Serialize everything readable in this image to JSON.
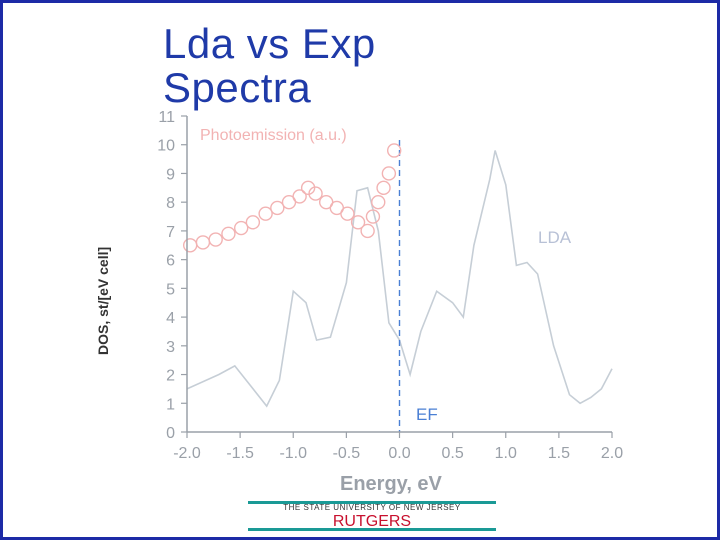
{
  "slide": {
    "title_line1": "Lda vs Exp",
    "title_line2": "Spectra",
    "title_color": "#1f3aa8",
    "frame_color": "#1d2aa6"
  },
  "footer": {
    "tagline": "THE STATE UNIVERSITY OF NEW JERSEY",
    "name": "RUTGERS",
    "name_color": "#c8102e",
    "line_color": "#1a9a96"
  },
  "chart_data": {
    "type": "line",
    "xlabel": "Energy, eV",
    "ylabel": "DOS, st/[eV cell]",
    "xlim": [
      -2.0,
      2.0
    ],
    "ylim": [
      0,
      11
    ],
    "xticks": [
      "-2.0",
      "-1.5",
      "-1.0",
      "-0.5",
      "0.0",
      "0.5",
      "1.0",
      "1.5",
      "2.0"
    ],
    "yticks": [
      "0",
      "1",
      "2",
      "3",
      "4",
      "5",
      "6",
      "7",
      "8",
      "9",
      "10",
      "11"
    ],
    "annotations": {
      "photoemission": "Photoemission (a.u.)",
      "lda": "LDA",
      "ef": "EF"
    },
    "fermi_level": 0.0,
    "series": [
      {
        "name": "LDA",
        "style": "line",
        "color": "#c6ced6",
        "x": [
          -2.0,
          -1.7,
          -1.55,
          -1.4,
          -1.25,
          -1.13,
          -1.0,
          -0.88,
          -0.78,
          -0.65,
          -0.5,
          -0.4,
          -0.3,
          -0.2,
          -0.1,
          0.0,
          0.1,
          0.2,
          0.35,
          0.5,
          0.6,
          0.7,
          0.85,
          0.9,
          1.0,
          1.1,
          1.2,
          1.3,
          1.45,
          1.6,
          1.7,
          1.8,
          1.9,
          2.0
        ],
        "y": [
          1.5,
          2.0,
          2.3,
          1.6,
          0.9,
          1.8,
          4.9,
          4.5,
          3.2,
          3.3,
          5.2,
          8.4,
          8.5,
          7.0,
          3.8,
          3.2,
          2.0,
          3.5,
          4.9,
          4.5,
          4.0,
          6.5,
          8.8,
          9.8,
          8.6,
          5.8,
          5.9,
          5.5,
          3.0,
          1.3,
          1.0,
          1.2,
          1.5,
          2.2
        ]
      },
      {
        "name": "Photoemission (a.u.)",
        "style": "circles",
        "color": "#f2b3b3",
        "x": [
          -1.97,
          -1.85,
          -1.73,
          -1.61,
          -1.49,
          -1.38,
          -1.26,
          -1.15,
          -1.04,
          -0.94,
          -0.86,
          -0.79,
          -0.69,
          -0.59,
          -0.49,
          -0.39,
          -0.3,
          -0.25,
          -0.2,
          -0.15,
          -0.1,
          -0.05
        ],
        "y": [
          6.5,
          6.6,
          6.7,
          6.9,
          7.1,
          7.3,
          7.6,
          7.8,
          8.0,
          8.2,
          8.5,
          8.3,
          8.0,
          7.8,
          7.6,
          7.3,
          7.0,
          7.5,
          8.0,
          8.5,
          9.0,
          9.8
        ]
      }
    ]
  }
}
